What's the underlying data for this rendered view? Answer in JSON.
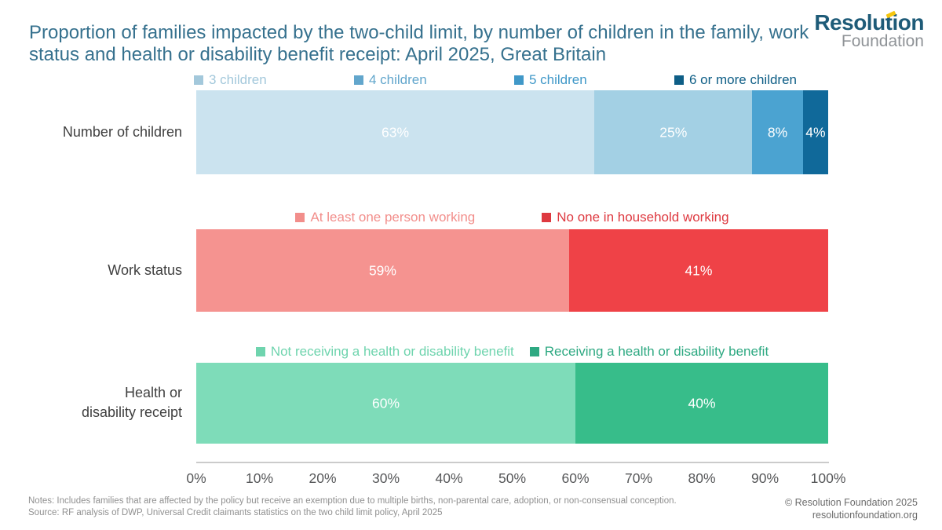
{
  "title": "Proportion of families impacted by the two-child limit, by number of children in the family, work status and health or disability benefit receipt: April 2025, Great Britain",
  "logo": {
    "line1": "Resolution",
    "line2": "Foundation"
  },
  "chart_data": {
    "type": "bar",
    "orientation": "horizontal-stacked",
    "unit": "%",
    "xlim": [
      0,
      100
    ],
    "grid": false,
    "legend_position": "above-each-bar",
    "x_ticks": [
      "0%",
      "10%",
      "20%",
      "30%",
      "40%",
      "50%",
      "60%",
      "70%",
      "80%",
      "90%",
      "100%"
    ],
    "rows": [
      {
        "label": "Number of children",
        "label_lines": [
          "Number of children"
        ],
        "segments": [
          {
            "name": "3 children",
            "value": 63,
            "color": "#CBE3EF",
            "legend_color": "#A3C8DB"
          },
          {
            "name": "4 children",
            "value": 25,
            "color": "#A3D0E4",
            "legend_color": "#62A6CC"
          },
          {
            "name": "5 children",
            "value": 8,
            "color": "#4BA3D1",
            "legend_color": "#4098C8"
          },
          {
            "name": "6 or more children",
            "value": 4,
            "color": "#10699A",
            "legend_color": "#0E5E86"
          }
        ]
      },
      {
        "label": "Work status",
        "label_lines": [
          "Work status"
        ],
        "segments": [
          {
            "name": "At least one person working",
            "value": 59,
            "color": "#F59390",
            "legend_color": "#F28E8B"
          },
          {
            "name": "No one in household working",
            "value": 41,
            "color": "#EF4247",
            "legend_color": "#DE3940"
          }
        ]
      },
      {
        "label": "Health or disability receipt",
        "label_lines": [
          "Health or",
          "disability receipt"
        ],
        "segments": [
          {
            "name": "Not receiving a health or disability benefit",
            "value": 60,
            "color": "#7EDCB9",
            "legend_color": "#6FD4AE"
          },
          {
            "name": "Receiving a health or disability benefit",
            "value": 40,
            "color": "#37BD8A",
            "legend_color": "#2EA982"
          }
        ]
      }
    ]
  },
  "footer": {
    "notes": "Notes: Includes families that are affected by the policy but receive an exemption due to multiple births, non-parental care, adoption, or non-consensual conception.",
    "source": "Source: RF analysis of DWP, Universal Credit claimants statistics on the two child limit policy, April 2025",
    "copyright": "© Resolution Foundation 2025",
    "website": "resolutionfoundation.org"
  }
}
